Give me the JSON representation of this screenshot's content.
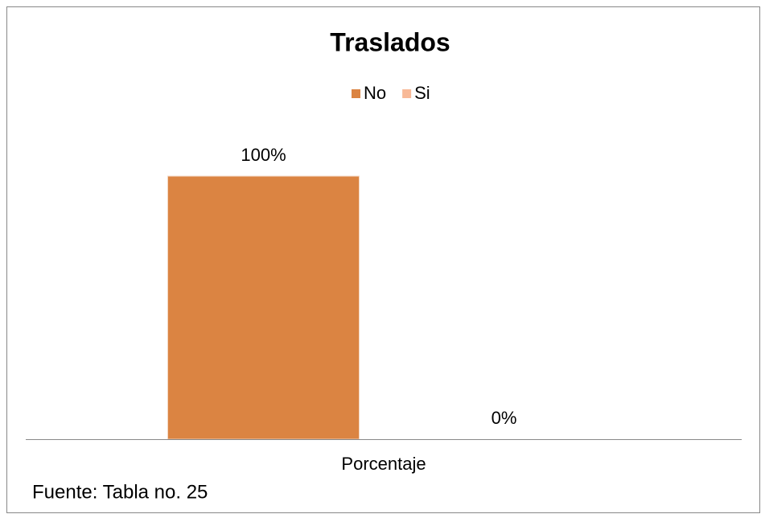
{
  "chart_data": {
    "type": "bar",
    "title": "Traslados",
    "categories": [
      "Porcentaje"
    ],
    "series": [
      {
        "name": "No",
        "color": "#db8442",
        "values": [
          100
        ],
        "value_labels": [
          "100%"
        ]
      },
      {
        "name": "Si",
        "color": "#f8b997",
        "values": [
          0
        ],
        "value_labels": [
          "0%"
        ]
      }
    ],
    "legend": "top",
    "annotation": "Fuente: Tabla no. 25"
  }
}
